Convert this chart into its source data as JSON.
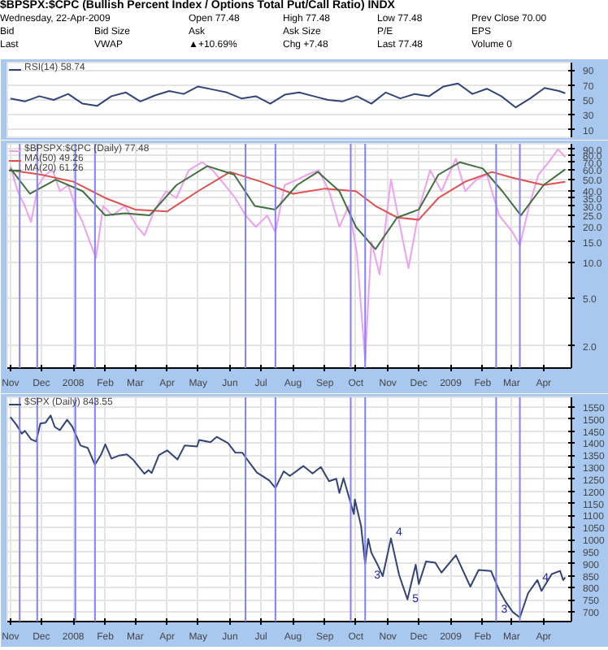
{
  "chart_data": [
    {
      "type": "line",
      "title": "$BPSPX:$CPC (Bullish Percent Index / Options Total Put/Call Ratio) INDX",
      "annotations": [
        "Wednesday, 22-Apr-2009",
        "Open 77.48",
        "High 77.48",
        "Low 77.48",
        "Prev Close 70.00",
        "Bid",
        "Bid Size",
        "Ask",
        "Ask Size",
        "P/E",
        "EPS",
        "Last",
        "VWAP",
        "▲+10.69%",
        "Chg +7.48",
        "Last 77.48",
        "Volume 0"
      ],
      "x": [
        "2007-11-01",
        "2007-11-15",
        "2007-11-29",
        "2007-12-13",
        "2007-12-27",
        "2008-01-10",
        "2008-01-24",
        "2008-02-07",
        "2008-02-21",
        "2008-03-06",
        "2008-03-20",
        "2008-04-03",
        "2008-04-17",
        "2008-05-01",
        "2008-05-15",
        "2008-05-29",
        "2008-06-12",
        "2008-06-26",
        "2008-07-10",
        "2008-07-24",
        "2008-08-07",
        "2008-08-21",
        "2008-09-04",
        "2008-09-18",
        "2008-10-02",
        "2008-10-16",
        "2008-10-30",
        "2008-11-13",
        "2008-11-27",
        "2008-12-11",
        "2008-12-25",
        "2009-01-08",
        "2009-01-22",
        "2009-02-05",
        "2009-02-19",
        "2009-03-05",
        "2009-03-19",
        "2009-04-02",
        "2009-04-16",
        "2009-04-22"
      ],
      "series": [
        {
          "name": "RSI(14) 58.74",
          "color": "#334477",
          "values": [
            52,
            48,
            55,
            50,
            58,
            45,
            42,
            55,
            60,
            48,
            56,
            62,
            58,
            68,
            64,
            60,
            52,
            55,
            45,
            57,
            60,
            55,
            50,
            48,
            55,
            45,
            60,
            52,
            58,
            55,
            68,
            72,
            58,
            65,
            55,
            40,
            52,
            66,
            62,
            59
          ]
        }
      ],
      "xlim": [
        "2007-10-29",
        "2009-04-28"
      ],
      "ylim": [
        0,
        100
      ],
      "yticks": [
        10,
        30,
        50,
        70,
        90
      ],
      "grid": true,
      "legend": "top left",
      "tick_labels": "y"
    },
    {
      "type": "line",
      "log": true,
      "series": [
        {
          "name": "$BPSPX:$CPC (Daily) 77.48",
          "color": "#f0a0f0",
          "x": [
            "2007-11-01",
            "2007-11-08",
            "2007-11-15",
            "2007-11-21",
            "2007-11-28",
            "2007-12-05",
            "2007-12-12",
            "2007-12-19",
            "2007-12-27",
            "2008-01-04",
            "2008-01-10",
            "2008-01-17",
            "2008-01-23",
            "2008-01-30",
            "2008-02-08",
            "2008-02-20",
            "2008-03-03",
            "2008-03-10",
            "2008-03-20",
            "2008-03-31",
            "2008-04-10",
            "2008-04-22",
            "2008-05-05",
            "2008-05-15",
            "2008-05-27",
            "2008-06-06",
            "2008-06-16",
            "2008-06-26",
            "2008-07-07",
            "2008-07-15",
            "2008-07-24",
            "2008-08-05",
            "2008-08-15",
            "2008-08-26",
            "2008-09-05",
            "2008-09-15",
            "2008-09-24",
            "2008-10-02",
            "2008-10-10",
            "2008-10-16",
            "2008-10-24",
            "2008-11-04",
            "2008-11-13",
            "2008-11-21",
            "2008-12-02",
            "2008-12-12",
            "2008-12-23",
            "2009-01-06",
            "2009-01-15",
            "2009-01-26",
            "2009-02-05",
            "2009-02-17",
            "2009-03-02",
            "2009-03-09",
            "2009-03-18",
            "2009-03-27",
            "2009-04-06",
            "2009-04-15",
            "2009-04-22"
          ],
          "values": [
            65,
            40,
            30,
            22,
            45,
            55,
            60,
            40,
            45,
            28,
            22,
            15,
            11,
            30,
            25,
            30,
            20,
            17,
            28,
            40,
            35,
            60,
            70,
            60,
            45,
            35,
            25,
            20,
            25,
            18,
            45,
            50,
            55,
            60,
            40,
            20,
            30,
            12,
            1.5,
            15,
            8,
            50,
            20,
            9,
            30,
            60,
            40,
            75,
            40,
            50,
            55,
            25,
            18,
            14,
            30,
            55,
            70,
            90,
            77.48
          ]
        },
        {
          "name": "MA(50) 49.26",
          "color": "#e05050",
          "x": [
            "2007-11-01",
            "2007-12-01",
            "2008-01-01",
            "2008-02-01",
            "2008-03-01",
            "2008-04-01",
            "2008-05-01",
            "2008-06-01",
            "2008-07-01",
            "2008-08-01",
            "2008-09-01",
            "2008-10-01",
            "2008-10-20",
            "2008-11-10",
            "2008-12-01",
            "2008-12-20",
            "2009-01-15",
            "2009-02-10",
            "2009-03-01",
            "2009-04-01",
            "2009-04-22"
          ],
          "values": [
            60,
            55,
            48,
            35,
            28,
            27,
            40,
            58,
            48,
            38,
            42,
            40,
            30,
            24,
            23,
            35,
            48,
            58,
            52,
            45,
            48
          ]
        },
        {
          "name": "MA(20) 61.26",
          "color": "#407040",
          "x": [
            "2007-11-01",
            "2007-11-20",
            "2007-12-15",
            "2008-01-10",
            "2008-02-01",
            "2008-02-20",
            "2008-03-15",
            "2008-04-10",
            "2008-05-10",
            "2008-06-05",
            "2008-06-25",
            "2008-07-15",
            "2008-08-05",
            "2008-08-25",
            "2008-09-15",
            "2008-10-01",
            "2008-10-20",
            "2008-11-10",
            "2008-12-01",
            "2008-12-20",
            "2009-01-10",
            "2009-02-01",
            "2009-02-20",
            "2009-03-10",
            "2009-04-01",
            "2009-04-22"
          ],
          "values": [
            62,
            38,
            50,
            40,
            25,
            26,
            25,
            45,
            65,
            55,
            30,
            28,
            45,
            58,
            40,
            20,
            13,
            24,
            28,
            55,
            70,
            62,
            40,
            25,
            45,
            61
          ]
        }
      ],
      "ref_lines": [
        {
          "axis": "x",
          "value": "2007-11-10",
          "color": "#8080ff"
        },
        {
          "axis": "x",
          "value": "2007-11-27",
          "color": "#8080ff"
        },
        {
          "axis": "x",
          "value": "2008-01-03",
          "color": "#8080ff"
        },
        {
          "axis": "x",
          "value": "2008-01-22",
          "color": "#8080ff"
        },
        {
          "axis": "x",
          "value": "2008-06-16",
          "color": "#8080ff"
        },
        {
          "axis": "x",
          "value": "2008-07-15",
          "color": "#8080ff"
        },
        {
          "axis": "x",
          "value": "2008-09-26",
          "color": "#8080ff"
        },
        {
          "axis": "x",
          "value": "2008-10-10",
          "color": "#8080ff"
        },
        {
          "axis": "x",
          "value": "2009-02-14",
          "color": "#8080ff"
        },
        {
          "axis": "x",
          "value": "2009-03-09",
          "color": "#8080ff"
        }
      ],
      "xlim": [
        "2007-10-29",
        "2009-04-28"
      ],
      "ylim": [
        1.3,
        100
      ],
      "yticks": [
        {
          "value": 90,
          "label": "90.0"
        },
        {
          "value": 80,
          "label": "80.0"
        },
        {
          "value": 70,
          "label": "70.0"
        },
        {
          "value": 60,
          "label": "60.0"
        },
        {
          "value": 50,
          "label": "50.0"
        },
        {
          "value": 40,
          "label": "40.0"
        },
        {
          "value": 35,
          "label": "35.0"
        },
        {
          "value": 30,
          "label": "30.0"
        },
        {
          "value": 25,
          "label": "25.0"
        },
        {
          "value": 20,
          "label": "20.0"
        },
        {
          "value": 15,
          "label": "15.0"
        },
        {
          "value": 10,
          "label": "10.0"
        },
        {
          "value": 5,
          "label": "5.0"
        },
        {
          "value": 2,
          "label": "2.0"
        }
      ],
      "xticks": [
        {
          "value": "2007-11-01",
          "label": "Nov"
        },
        {
          "value": "2007-12-01",
          "label": "Dec"
        },
        {
          "value": "2008-01-01",
          "label": "2008"
        },
        {
          "value": "2008-02-01",
          "label": "Feb"
        },
        {
          "value": "2008-03-01",
          "label": "Mar"
        },
        {
          "value": "2008-04-01",
          "label": "Apr"
        },
        {
          "value": "2008-05-01",
          "label": "May"
        },
        {
          "value": "2008-06-01",
          "label": "Jun"
        },
        {
          "value": "2008-07-01",
          "label": "Jul"
        },
        {
          "value": "2008-08-01",
          "label": "Aug"
        },
        {
          "value": "2008-09-01",
          "label": "Sep"
        },
        {
          "value": "2008-10-01",
          "label": "Oct"
        },
        {
          "value": "2008-11-01",
          "label": "Nov"
        },
        {
          "value": "2008-12-01",
          "label": "Dec"
        },
        {
          "value": "2009-01-01",
          "label": "2009"
        },
        {
          "value": "2009-02-01",
          "label": "Feb"
        },
        {
          "value": "2009-03-01",
          "label": "Mar"
        },
        {
          "value": "2009-04-01",
          "label": "Apr"
        }
      ],
      "grid": true,
      "legend": "top left"
    },
    {
      "type": "line",
      "x": [
        "2007-11-01",
        "2007-11-07",
        "2007-11-12",
        "2007-11-15",
        "2007-11-21",
        "2007-11-26",
        "2007-11-30",
        "2007-12-05",
        "2007-12-10",
        "2007-12-14",
        "2007-12-19",
        "2007-12-26",
        "2007-12-31",
        "2008-01-08",
        "2008-01-15",
        "2008-01-22",
        "2008-01-28",
        "2008-02-01",
        "2008-02-07",
        "2008-02-14",
        "2008-02-22",
        "2008-02-28",
        "2008-03-10",
        "2008-03-14",
        "2008-03-17",
        "2008-03-24",
        "2008-04-01",
        "2008-04-11",
        "2008-04-18",
        "2008-04-30",
        "2008-05-02",
        "2008-05-13",
        "2008-05-19",
        "2008-05-30",
        "2008-06-06",
        "2008-06-13",
        "2008-06-20",
        "2008-06-27",
        "2008-07-03",
        "2008-07-09",
        "2008-07-15",
        "2008-07-23",
        "2008-07-29",
        "2008-08-11",
        "2008-08-20",
        "2008-08-28",
        "2008-09-05",
        "2008-09-12",
        "2008-09-15",
        "2008-09-19",
        "2008-09-29",
        "2008-09-30",
        "2008-10-06",
        "2008-10-10",
        "2008-10-13",
        "2008-10-16",
        "2008-10-22",
        "2008-10-27",
        "2008-11-04",
        "2008-11-12",
        "2008-11-20",
        "2008-11-28",
        "2008-12-01",
        "2008-12-08",
        "2008-12-17",
        "2008-12-23",
        "2009-01-06",
        "2009-01-20",
        "2009-01-28",
        "2009-02-09",
        "2009-02-17",
        "2009-02-23",
        "2009-03-02",
        "2009-03-09",
        "2009-03-17",
        "2009-03-26",
        "2009-03-30",
        "2009-04-09",
        "2009-04-17",
        "2009-04-20",
        "2009-04-22"
      ],
      "series": [
        {
          "name": "$SPX (Daily) 843.55",
          "color": "#334477",
          "values": [
            1508,
            1475,
            1439,
            1451,
            1416,
            1407,
            1481,
            1485,
            1515,
            1467,
            1454,
            1497,
            1468,
            1390,
            1380,
            1310,
            1353,
            1395,
            1336,
            1348,
            1353,
            1331,
            1273,
            1288,
            1276,
            1350,
            1370,
            1332,
            1390,
            1386,
            1413,
            1404,
            1426,
            1400,
            1361,
            1360,
            1318,
            1278,
            1262,
            1245,
            1214,
            1283,
            1264,
            1305,
            1274,
            1301,
            1242,
            1252,
            1193,
            1255,
            1106,
            1166,
            1057,
            899,
            1003,
            946,
            896,
            848,
            1005,
            852,
            752,
            896,
            816,
            909,
            904,
            863,
            935,
            805,
            874,
            870,
            789,
            743,
            700,
            677,
            778,
            832,
            787,
            857,
            870,
            832,
            843
          ]
        }
      ],
      "annotations": [
        {
          "text": "3",
          "x": "2008-10-14",
          "y": 838
        },
        {
          "text": "4",
          "x": "2008-11-04",
          "y": 1018
        },
        {
          "text": "5",
          "x": "2008-11-20",
          "y": 742
        },
        {
          "text": "3",
          "x": "2009-02-14",
          "y": 697
        },
        {
          "text": "4",
          "x": "2009-03-26",
          "y": 827
        }
      ],
      "ref_lines": [
        {
          "axis": "x",
          "value": "2007-11-10",
          "color": "#8080ff"
        },
        {
          "axis": "x",
          "value": "2007-11-27",
          "color": "#8080ff"
        },
        {
          "axis": "x",
          "value": "2008-01-03",
          "color": "#8080ff"
        },
        {
          "axis": "x",
          "value": "2008-01-22",
          "color": "#8080ff"
        },
        {
          "axis": "x",
          "value": "2008-06-16",
          "color": "#8080ff"
        },
        {
          "axis": "x",
          "value": "2008-07-15",
          "color": "#8080ff"
        },
        {
          "axis": "x",
          "value": "2008-09-26",
          "color": "#8080ff"
        },
        {
          "axis": "x",
          "value": "2008-10-10",
          "color": "#8080ff"
        },
        {
          "axis": "x",
          "value": "2009-02-14",
          "color": "#8080ff"
        },
        {
          "axis": "x",
          "value": "2009-03-09",
          "color": "#8080ff"
        }
      ],
      "xlim": [
        "2007-10-29",
        "2009-04-28"
      ],
      "ylim": [
        660,
        1590
      ],
      "yticks": [
        700,
        750,
        800,
        850,
        900,
        950,
        1000,
        1050,
        1100,
        1150,
        1200,
        1250,
        1300,
        1350,
        1400,
        1450,
        1500,
        1550
      ],
      "xticks": [
        {
          "value": "2007-11-01",
          "label": "Nov"
        },
        {
          "value": "2007-12-01",
          "label": "Dec"
        },
        {
          "value": "2008-01-01",
          "label": "2008"
        },
        {
          "value": "2008-02-01",
          "label": "Feb"
        },
        {
          "value": "2008-03-01",
          "label": "Mar"
        },
        {
          "value": "2008-04-01",
          "label": "Apr"
        },
        {
          "value": "2008-05-01",
          "label": "May"
        },
        {
          "value": "2008-06-01",
          "label": "Jun"
        },
        {
          "value": "2008-07-01",
          "label": "Jul"
        },
        {
          "value": "2008-08-01",
          "label": "Aug"
        },
        {
          "value": "2008-09-01",
          "label": "Sep"
        },
        {
          "value": "2008-10-01",
          "label": "Oct"
        },
        {
          "value": "2008-11-01",
          "label": "Nov"
        },
        {
          "value": "2008-12-01",
          "label": "Dec"
        },
        {
          "value": "2009-01-01",
          "label": "2009"
        },
        {
          "value": "2009-02-01",
          "label": "Feb"
        },
        {
          "value": "2009-03-01",
          "label": "Mar"
        },
        {
          "value": "2009-04-01",
          "label": "Apr"
        }
      ],
      "grid": true,
      "legend": "top left"
    }
  ]
}
